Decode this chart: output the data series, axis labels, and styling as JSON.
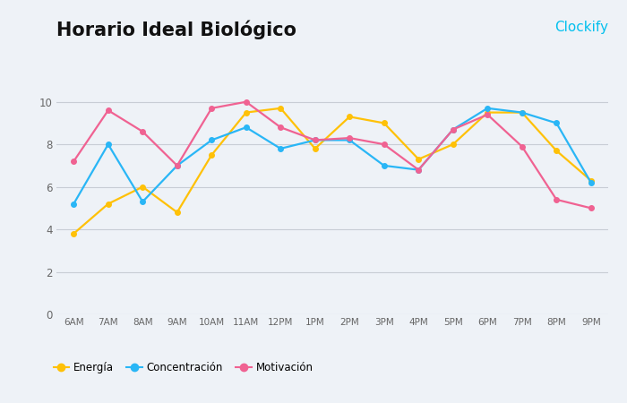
{
  "title": "Horario Ideal Biológico",
  "clockify_text": "Clockify",
  "categories": [
    "6AM",
    "7AM",
    "8AM",
    "9AM",
    "10AM",
    "11AM",
    "12PM",
    "1PM",
    "2PM",
    "3PM",
    "4PM",
    "5PM",
    "6PM",
    "7PM",
    "8PM",
    "9PM"
  ],
  "energia": [
    3.8,
    5.2,
    6.0,
    4.8,
    7.5,
    9.5,
    9.7,
    7.8,
    9.3,
    9.0,
    7.3,
    8.0,
    9.5,
    9.5,
    7.7,
    6.3
  ],
  "concentracion": [
    5.2,
    8.0,
    5.3,
    7.0,
    8.2,
    8.8,
    7.8,
    8.2,
    8.2,
    7.0,
    6.8,
    8.7,
    9.7,
    9.5,
    9.0,
    6.2
  ],
  "motivacion": [
    7.2,
    9.6,
    8.6,
    7.0,
    9.7,
    10.0,
    8.8,
    8.2,
    8.3,
    8.0,
    6.8,
    8.7,
    9.4,
    7.9,
    5.4,
    5.0
  ],
  "energia_color": "#FFC107",
  "concentracion_color": "#29B6F6",
  "motivacion_color": "#F06292",
  "background_color": "#EEF2F7",
  "plot_bg_color": "#EEF2F7",
  "grid_color": "#C8CDD5",
  "title_fontsize": 15,
  "clockify_color": "#03C0EE",
  "ylim": [
    0,
    11
  ],
  "yticks": [
    0,
    2,
    4,
    6,
    8,
    10
  ],
  "legend_labels": [
    "Energía",
    "Concentración",
    "Motivación"
  ],
  "bottom_bar_color": "#03C0EE",
  "marker_size": 4,
  "line_width": 1.6
}
